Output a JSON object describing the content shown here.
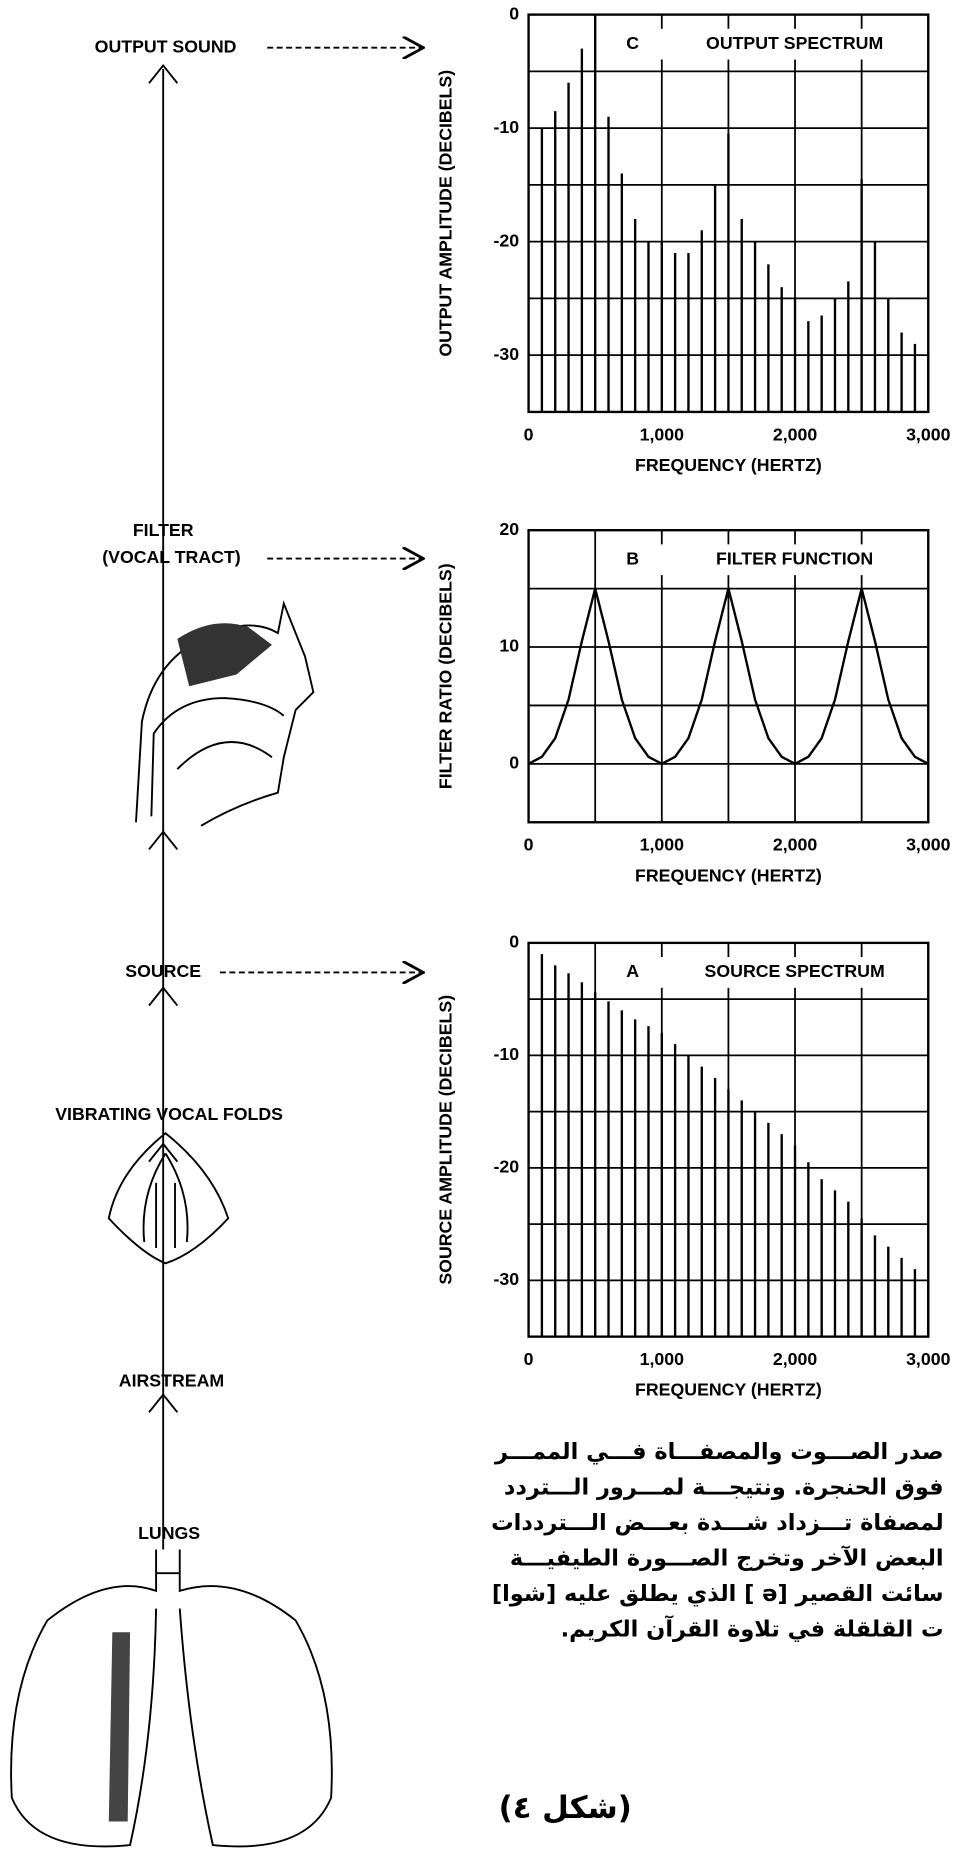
{
  "chart_data": [
    {
      "type": "stem",
      "panel": "C",
      "title": "OUTPUT SPECTRUM",
      "xlabel": "FREQUENCY (HERTZ)",
      "ylabel": "OUTPUT AMPLITUDE (DECIBELS)",
      "color": "#000000",
      "x": [
        100,
        200,
        300,
        400,
        500,
        600,
        700,
        800,
        900,
        1000,
        1100,
        1200,
        1300,
        1400,
        1500,
        1600,
        1700,
        1800,
        1900,
        2000,
        2100,
        2200,
        2300,
        2400,
        2500,
        2600,
        2700,
        2800,
        2900,
        3000
      ],
      "values": [
        -10,
        -8.5,
        -6,
        -3,
        0,
        -9,
        -14,
        -18,
        -20,
        -20,
        -21,
        -21,
        -19,
        -15,
        -10.5,
        -18,
        -20,
        -22,
        -24,
        -25,
        -27,
        -26.5,
        -25,
        -23.5,
        -14.5,
        -20,
        -25,
        -28,
        -29,
        -30
      ],
      "xlim": [
        0,
        3000
      ],
      "ylim": [
        -35,
        0
      ],
      "xticks": [
        0,
        {
          "value": 1000,
          "label": "1,000"
        },
        {
          "value": 2000,
          "label": "2,000"
        },
        {
          "value": 3000,
          "label": "3,000"
        }
      ],
      "yticks": [
        0,
        -10,
        -20,
        -30
      ],
      "xminor": [
        500,
        1500,
        2500
      ],
      "yminor": [
        -5,
        -15,
        -25
      ],
      "grid": true
    },
    {
      "type": "line",
      "panel": "B",
      "title": "FILTER FUNCTION",
      "xlabel": "FREQUENCY (HERTZ)",
      "ylabel": "FILTER RATIO (DECIBELS)",
      "color": "#000000",
      "x": [
        0,
        100,
        200,
        300,
        400,
        500,
        600,
        700,
        800,
        900,
        1000,
        1100,
        1200,
        1300,
        1400,
        1500,
        1600,
        1700,
        1800,
        1900,
        2000,
        2100,
        2200,
        2300,
        2400,
        2500,
        2600,
        2700,
        2800,
        2900,
        3000
      ],
      "values": [
        0,
        0.6,
        2.2,
        5.5,
        10.5,
        15,
        10.5,
        5.5,
        2.2,
        0.6,
        0,
        0.6,
        2.2,
        5.5,
        10.5,
        15,
        10.5,
        5.5,
        2.2,
        0.6,
        0,
        0.6,
        2.2,
        5.5,
        10.5,
        15,
        10.5,
        5.5,
        2.2,
        0.6,
        0
      ],
      "xlim": [
        0,
        3000
      ],
      "ylim": [
        -5,
        20
      ],
      "xticks": [
        0,
        {
          "value": 1000,
          "label": "1,000"
        },
        {
          "value": 2000,
          "label": "2,000"
        },
        {
          "value": 3000,
          "label": "3,000"
        }
      ],
      "yticks": [
        0,
        10,
        20
      ],
      "xminor": [
        500,
        1500,
        2500
      ],
      "yminor": [
        5,
        15
      ],
      "grid": true
    },
    {
      "type": "stem",
      "panel": "A",
      "title": "SOURCE SPECTRUM",
      "xlabel": "FREQUENCY (HERTZ)",
      "ylabel": "SOURCE AMPLITUDE (DECIBELS)",
      "color": "#000000",
      "x": [
        100,
        200,
        300,
        400,
        500,
        600,
        700,
        800,
        900,
        1000,
        1100,
        1200,
        1300,
        1400,
        1500,
        1600,
        1700,
        1800,
        1900,
        2000,
        2100,
        2200,
        2300,
        2400,
        2500,
        2600,
        2700,
        2800,
        2900,
        3000
      ],
      "values": [
        -1,
        -2,
        -2.7,
        -3.5,
        -4.4,
        -5.2,
        -6,
        -6.8,
        -7.4,
        -8,
        -9,
        -10,
        -11,
        -12,
        -13,
        -14,
        -15,
        -16,
        -17,
        -18,
        -19.5,
        -21,
        -22,
        -23,
        -24.5,
        -26,
        -27,
        -28,
        -29,
        -30
      ],
      "xlim": [
        0,
        3000
      ],
      "ylim": [
        -35,
        0
      ],
      "xticks": [
        0,
        {
          "value": 1000,
          "label": "1,000"
        },
        {
          "value": 2000,
          "label": "2,000"
        },
        {
          "value": 3000,
          "label": "3,000"
        }
      ],
      "yticks": [
        0,
        -10,
        -20,
        -30
      ],
      "xminor": [
        500,
        1500,
        2500
      ],
      "yminor": [
        -5,
        -15,
        -25
      ],
      "grid": true
    }
  ],
  "diagram": {
    "output": "OUTPUT SOUND",
    "filter": "FILTER",
    "filter_sub": "(VOCAL TRACT)",
    "source": "SOURCE",
    "folds": "VIBRATING VOCAL FOLDS",
    "airstream": "AIRSTREAM",
    "lungs": "LUNGS"
  },
  "text": {
    "lines": [
      "صدر الصـــوت والمصفـــاة فـــي الممـــر",
      "فوق الحنجرة. ونتيجـــة لمـــرور الـــتردد",
      "لمصفاة تـــزداد شـــدة بعـــض الـــترددات",
      "البعض الآخر وتخرج الصـــورة الطيفيـــة",
      "سائت القصير [ə ] الذي يطلق عليه [شوا]",
      "ت القلقلة في تلاوة القرآن الكريم."
    ],
    "caption": "(شكل ٤)"
  }
}
